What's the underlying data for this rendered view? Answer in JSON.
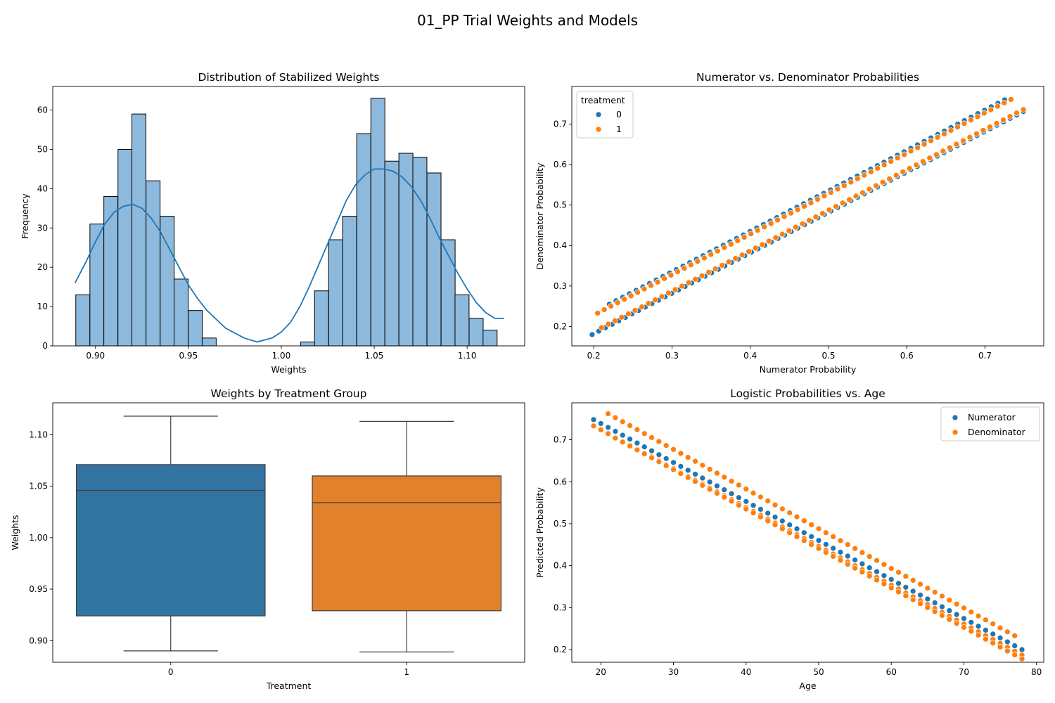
{
  "figure": {
    "suptitle": "01_PP Trial Weights and Models"
  },
  "colors": {
    "blue": "#1f77b4",
    "orange": "#ff7f0e",
    "hist_fill": "#8db9dd",
    "box_blue": "#3274a1",
    "box_orange": "#e1812c"
  },
  "chart_data": [
    {
      "id": "hist",
      "type": "bar",
      "subtype": "histogram-with-kde",
      "title": "Distribution of Stabilized Weights",
      "xlabel": "Weights",
      "ylabel": "Frequency",
      "xlim": [
        0.877,
        1.131
      ],
      "ylim": [
        0,
        66
      ],
      "xticks": [
        0.9,
        0.95,
        1.0,
        1.05,
        1.1
      ],
      "xtick_labels": [
        "0.90",
        "0.95",
        "1.00",
        "1.05",
        "1.10"
      ],
      "yticks": [
        0,
        10,
        20,
        30,
        40,
        50,
        60
      ],
      "bin_width": 0.00756,
      "bin_starts": [
        0.8894,
        0.897,
        0.9045,
        0.9121,
        0.9196,
        0.9272,
        0.9348,
        0.9423,
        0.9499,
        0.9574,
        1.0104,
        1.0179,
        1.0255,
        1.033,
        1.0406,
        1.0482,
        1.0557,
        1.0633,
        1.0708,
        1.0784,
        1.086,
        1.0935,
        1.1011,
        1.1086
      ],
      "counts": [
        13,
        31,
        38,
        50,
        59,
        42,
        33,
        17,
        9,
        2,
        1,
        14,
        27,
        33,
        54,
        63,
        47,
        49,
        48,
        44,
        27,
        13,
        7,
        4
      ],
      "kde": {
        "x": [
          0.889,
          0.895,
          0.9,
          0.905,
          0.91,
          0.915,
          0.92,
          0.925,
          0.93,
          0.935,
          0.94,
          0.945,
          0.95,
          0.955,
          0.96,
          0.97,
          0.98,
          0.987,
          0.995,
          1.0,
          1.005,
          1.01,
          1.015,
          1.02,
          1.025,
          1.03,
          1.035,
          1.04,
          1.045,
          1.05,
          1.055,
          1.06,
          1.065,
          1.07,
          1.075,
          1.08,
          1.085,
          1.09,
          1.095,
          1.1,
          1.105,
          1.11,
          1.115,
          1.12
        ],
        "y": [
          16,
          21.5,
          26.5,
          31,
          34,
          35.5,
          36,
          35,
          32.5,
          29,
          24.5,
          20,
          15.5,
          12,
          9,
          4.5,
          2,
          1,
          2,
          3.5,
          6,
          10,
          15,
          20.5,
          26,
          31.5,
          37,
          41,
          43.5,
          45,
          45,
          44.5,
          43,
          40.5,
          37,
          32.5,
          27.5,
          23,
          18.5,
          14.5,
          11,
          8.5,
          7,
          7
        ]
      }
    },
    {
      "id": "scatter_nd",
      "type": "scatter",
      "title": "Numerator vs. Denominator Probabilities",
      "xlabel": "Numerator Probability",
      "ylabel": "Denominator Probability",
      "xlim": [
        0.172,
        0.775
      ],
      "ylim": [
        0.152,
        0.793
      ],
      "xticks": [
        0.2,
        0.3,
        0.4,
        0.5,
        0.6,
        0.7
      ],
      "yticks": [
        0.2,
        0.3,
        0.4,
        0.5,
        0.6,
        0.7
      ],
      "legend": {
        "title": "treatment",
        "location": "upper-left",
        "entries": [
          "0",
          "1"
        ]
      },
      "series": [
        {
          "name": "0",
          "color": "#1f77b4",
          "lines": [
            {
              "x0": 0.198,
              "x1": 0.749,
              "slope": 1.0,
              "intercept": -0.018
            },
            {
              "x0": 0.22,
              "x1": 0.725,
              "slope": 1.0,
              "intercept": 0.035
            }
          ]
        },
        {
          "name": "1",
          "color": "#ff7f0e",
          "lines": [
            {
              "x0": 0.205,
              "x1": 0.733,
              "slope": 1.0,
              "intercept": 0.028
            },
            {
              "x0": 0.21,
              "x1": 0.749,
              "slope": 1.0,
              "intercept": -0.013
            }
          ]
        }
      ]
    },
    {
      "id": "box",
      "type": "box",
      "title": "Weights by Treatment Group",
      "xlabel": "Treatment",
      "ylabel": "Weights",
      "categories": [
        "0",
        "1"
      ],
      "ylim": [
        0.879,
        1.131
      ],
      "yticks": [
        0.9,
        0.95,
        1.0,
        1.05,
        1.1
      ],
      "ytick_labels": [
        "0.90",
        "0.95",
        "1.00",
        "1.05",
        "1.10"
      ],
      "boxes": [
        {
          "category": "0",
          "whisker_low": 0.89,
          "q1": 0.924,
          "median": 1.046,
          "q3": 1.071,
          "whisker_high": 1.118,
          "color": "#3274a1"
        },
        {
          "category": "1",
          "whisker_low": 0.889,
          "q1": 0.929,
          "median": 1.034,
          "q3": 1.06,
          "whisker_high": 1.113,
          "color": "#e1812c"
        }
      ]
    },
    {
      "id": "scatter_age",
      "type": "scatter",
      "title": "Logistic Probabilities vs. Age",
      "xlabel": "Age",
      "ylabel": "Predicted Probability",
      "xlim": [
        16,
        81
      ],
      "ylim": [
        0.17,
        0.788
      ],
      "xticks": [
        20,
        30,
        40,
        50,
        60,
        70,
        80
      ],
      "yticks": [
        0.2,
        0.3,
        0.4,
        0.5,
        0.6,
        0.7
      ],
      "legend": {
        "location": "upper-right",
        "entries": [
          "Numerator",
          "Denominator"
        ]
      },
      "series": [
        {
          "name": "Numerator",
          "color": "#1f77b4",
          "lines": [
            {
              "x0": 19,
              "x1": 78,
              "y0": 0.748,
              "y1": 0.2
            }
          ]
        },
        {
          "name": "Denominator",
          "color": "#ff7f0e",
          "lines": [
            {
              "x0": 21,
              "x1": 77,
              "y0": 0.762,
              "y1": 0.233
            },
            {
              "x0": 19,
              "x1": 78,
              "y0": 0.733,
              "y1": 0.187
            },
            {
              "x0": 22,
              "x1": 78,
              "y0": 0.704,
              "y1": 0.178
            }
          ]
        }
      ]
    }
  ]
}
